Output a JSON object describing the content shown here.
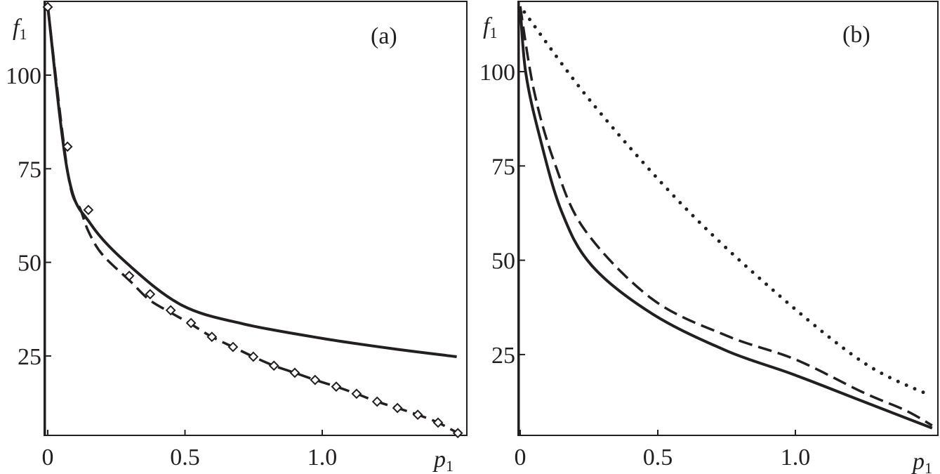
{
  "chart_data": [
    {
      "type": "line",
      "panel_label": "(a)",
      "xlabel": "p",
      "xlabel_sub": "1",
      "ylabel": "f",
      "ylabel_sub": "1",
      "xlim": [
        0,
        1.53
      ],
      "ylim": [
        3.8,
        119.7
      ],
      "xticks": [
        0,
        0.5,
        1.0
      ],
      "xtick_labels": [
        "0",
        "0.5",
        "1.0"
      ],
      "yticks": [
        100,
        75,
        50,
        25
      ],
      "ytick_labels": [
        "100",
        "75",
        "50",
        "25"
      ],
      "grid": false,
      "series": [
        {
          "name": "solid",
          "style": "solid",
          "x": [
            0,
            0.074,
            0.157,
            0.3,
            0.49,
            0.71,
            1.0,
            1.26,
            1.49
          ],
          "y": [
            118.4,
            73.5,
            60.2,
            49,
            38.5,
            33.6,
            29.7,
            26.9,
            24.8
          ]
        },
        {
          "name": "dashed",
          "style": "dashed",
          "x": [
            0,
            0.074,
            0.12,
            0.15,
            0.2,
            0.3,
            0.37,
            0.45,
            0.522,
            0.598,
            0.675,
            0.749,
            0.824,
            0.9,
            0.974,
            1.051,
            1.125,
            1.2,
            1.274,
            1.348,
            1.422,
            1.494
          ],
          "y": [
            118.4,
            73.5,
            64,
            58,
            52,
            45,
            40,
            36.5,
            33.5,
            30.1,
            27.4,
            24.8,
            22.4,
            20.5,
            18.6,
            16.8,
            14.9,
            12.8,
            11.1,
            9.3,
            7.2,
            4.4
          ]
        },
        {
          "name": "markers",
          "style": "diamond",
          "x": [
            0,
            0.072,
            0.148,
            0.297,
            0.373,
            0.448,
            0.522,
            0.598,
            0.675,
            0.749,
            0.824,
            0.9,
            0.974,
            1.051,
            1.125,
            1.2,
            1.274,
            1.348,
            1.422,
            1.494
          ],
          "y": [
            118.2,
            80.9,
            64.0,
            46.4,
            41.5,
            37.2,
            33.8,
            30.1,
            27.4,
            24.8,
            22.4,
            20.5,
            18.6,
            16.8,
            14.9,
            12.8,
            11.1,
            9.3,
            7.2,
            4.4
          ]
        }
      ]
    },
    {
      "type": "line",
      "panel_label": "(b)",
      "xlabel": "p",
      "xlabel_sub": "1",
      "ylabel": "f",
      "ylabel_sub": "1",
      "xlim": [
        0,
        1.52
      ],
      "ylim": [
        3.5,
        118.5
      ],
      "xticks": [
        0,
        0.5,
        1.0
      ],
      "xtick_labels": [
        "0",
        "0.5",
        "1.0"
      ],
      "yticks": [
        100,
        75,
        50,
        25
      ],
      "ytick_labels": [
        "100",
        "75",
        "50",
        "25"
      ],
      "grid": false,
      "series": [
        {
          "name": "solid",
          "style": "solid",
          "x": [
            0,
            0.02,
            0.07,
            0.15,
            0.26,
            0.48,
            0.75,
            0.99,
            1.245,
            1.497
          ],
          "y": [
            117.3,
            99.8,
            83,
            63,
            48.6,
            35.8,
            26,
            19.8,
            12.6,
            5.5
          ]
        },
        {
          "name": "dashed",
          "style": "dashed",
          "x": [
            0,
            0.05,
            0.125,
            0.235,
            0.48,
            0.75,
            1.0,
            1.245,
            1.4,
            1.497
          ],
          "y": [
            117.3,
            95,
            75.8,
            58,
            39.7,
            30,
            23.7,
            15,
            10.2,
            6.2
          ]
        },
        {
          "name": "dotted",
          "style": "dotted",
          "x": [
            0.015,
            0.26,
            0.59,
            0.92,
            1.245,
            1.485
          ],
          "y": [
            115.8,
            91.8,
            64.6,
            42,
            23,
            14.3
          ]
        }
      ]
    }
  ]
}
